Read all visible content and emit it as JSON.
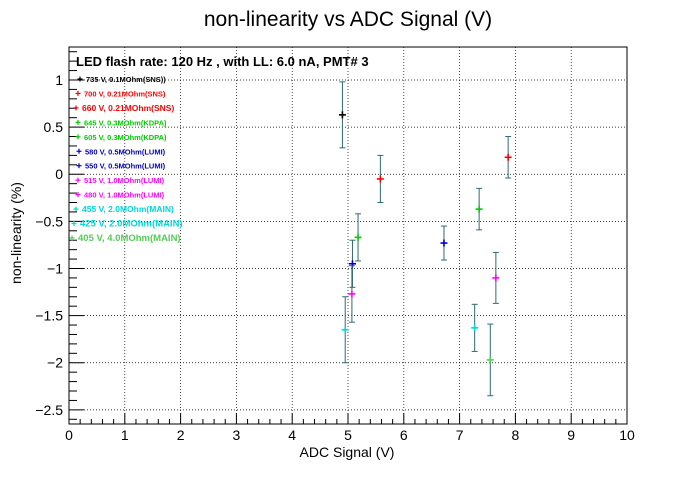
{
  "chart_data": {
    "type": "scatter",
    "title": "non-linearity vs ADC Signal (V)",
    "xlabel": "ADC Signal (V)",
    "ylabel": "non-linearity (%)",
    "xlim": [
      0,
      10
    ],
    "ylim": [
      -2.65,
      1.35
    ],
    "x_ticks": [
      "0",
      "1",
      "2",
      "3",
      "4",
      "5",
      "6",
      "7",
      "8",
      "9",
      "10"
    ],
    "y_ticks": [
      {
        "v": 1,
        "label": "1"
      },
      {
        "v": 0.5,
        "label": "0.5"
      },
      {
        "v": 0,
        "label": "0"
      },
      {
        "v": -0.5,
        "label": "−0.5"
      },
      {
        "v": -1,
        "label": "−1"
      },
      {
        "v": -1.5,
        "label": "−1.5"
      },
      {
        "v": -2,
        "label": "−2"
      },
      {
        "v": -2.5,
        "label": "−2.5"
      }
    ],
    "grid": true,
    "annotation": "LED flash rate: 120 Hz , with LL: 6.0 nA, PMT# 3",
    "legend_position": "left",
    "error_bar_color": "#2e6b73",
    "series": [
      {
        "name": "735 V, 0.1MOhm(SNS))",
        "color": "#000000",
        "points": [
          {
            "x": 4.9,
            "y": 0.63,
            "err": 0.35
          }
        ]
      },
      {
        "name": "700 V, 0.21MOhm(SNS)",
        "color": "#ff0000",
        "points": [
          {
            "x": 7.87,
            "y": 0.18,
            "err": 0.22
          }
        ]
      },
      {
        "name": "660 V, 0.21MOhm(SNS)",
        "color": "#ff0000",
        "points": [
          {
            "x": 5.58,
            "y": -0.05,
            "err": 0.25
          }
        ]
      },
      {
        "name": "645 V, 0.3MOhm(KDPA)",
        "color": "#00cc00",
        "points": [
          {
            "x": 7.35,
            "y": -0.37,
            "err": 0.22
          }
        ]
      },
      {
        "name": "605 V, 0.3MOhm(KDPA)",
        "color": "#00cc00",
        "points": [
          {
            "x": 5.18,
            "y": -0.67,
            "err": 0.25
          }
        ]
      },
      {
        "name": "580 V, 0.5MOhm(LUMI)",
        "color": "#0000cc",
        "points": [
          {
            "x": 6.72,
            "y": -0.73,
            "err": 0.18
          }
        ]
      },
      {
        "name": "550 V, 0.5MOhm(LUMI)",
        "color": "#0000cc",
        "points": [
          {
            "x": 5.08,
            "y": -0.95,
            "err": 0.25
          }
        ]
      },
      {
        "name": "515 V, 1.0MOhm(LUMI)",
        "color": "#ff00ff",
        "points": [
          {
            "x": 7.65,
            "y": -1.1,
            "err": 0.27
          }
        ]
      },
      {
        "name": "480 V, 1.0MOhm(LUMI)",
        "color": "#ff00ff",
        "points": [
          {
            "x": 5.07,
            "y": -1.27,
            "err": 0.3
          }
        ]
      },
      {
        "name": "455 V, 2.0MOhm(MAIN)",
        "color": "#00d7d7",
        "points": [
          {
            "x": 7.27,
            "y": -1.63,
            "err": 0.25
          }
        ]
      },
      {
        "name": "425 V, 2.0MOhm(MAIN)",
        "color": "#00d7d7",
        "points": [
          {
            "x": 4.95,
            "y": -1.65,
            "err": 0.35
          }
        ]
      },
      {
        "name": "405 V, 4.0MOhm(MAIN)",
        "color": "#55cc55",
        "points": [
          {
            "x": 7.55,
            "y": -1.97,
            "err": 0.38
          }
        ]
      }
    ]
  }
}
